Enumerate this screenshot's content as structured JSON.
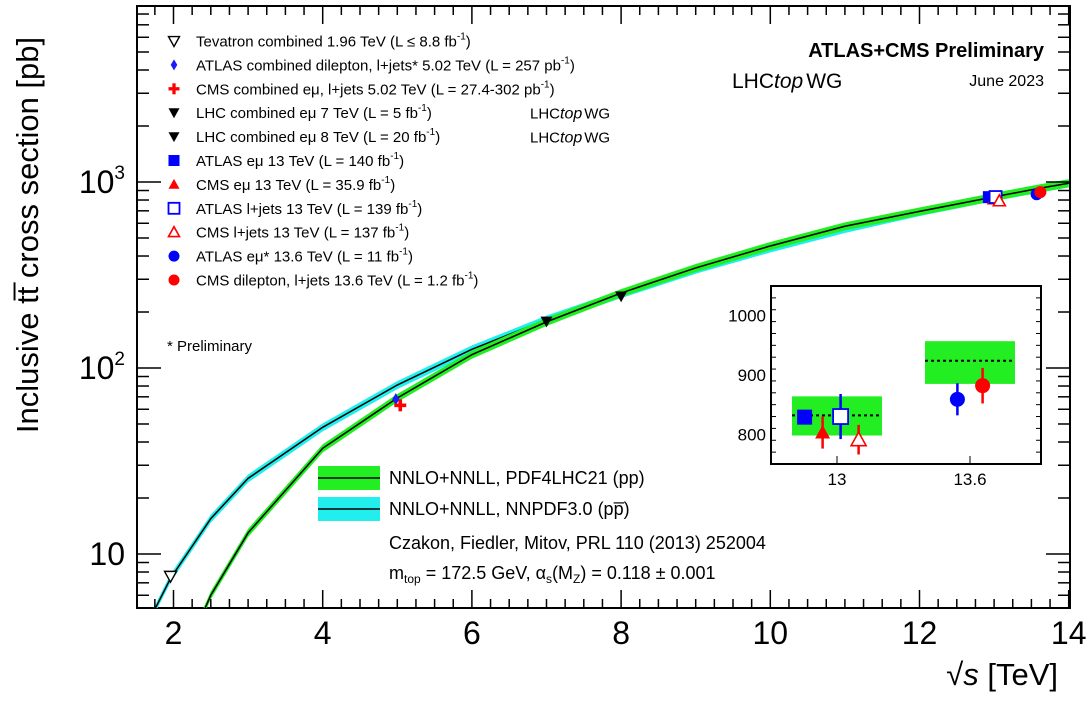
{
  "chart_data": {
    "type": "scatter",
    "ylabel": "Inclusive tt̅ cross section [pb]",
    "xlabel_prefix": "√s",
    "xlabel_suffix": " [TeV]",
    "xlim": [
      1.5,
      14
    ],
    "ylim": [
      5,
      9000
    ],
    "ylog": true,
    "x_ticks": [
      "2",
      "4",
      "6",
      "8",
      "10",
      "12",
      "14"
    ],
    "y_ticks": [
      "10",
      "10",
      "10"
    ],
    "y_tick_exps": [
      "",
      "2",
      "3"
    ],
    "header": {
      "title": "ATLAS+CMS Preliminary",
      "lhc_pre": "LHC",
      "lhc_top": "top",
      "lhc_wg": "WG",
      "date": "June 2023"
    },
    "legend_markers": [
      {
        "text": "Tevatron combined 1.96 TeV (L ≤ 8.8 fb",
        "sup": "-1",
        "tail": ")",
        "marker": "tri-down-open",
        "color": "#000000"
      },
      {
        "text": "ATLAS combined dilepton, l+jets* 5.02 TeV (L = 257 pb",
        "sup": "-1",
        "tail": ")",
        "marker": "diamond",
        "color": "#1a1aff"
      },
      {
        "text": "CMS combined eμ, l+jets 5.02 TeV (L = 27.4-302 pb",
        "sup": "-1",
        "tail": ")",
        "marker": "cross",
        "color": "#ff0000"
      },
      {
        "text": "LHC combined eμ 7 TeV (L = 5 fb",
        "sup": "-1",
        "tail": ")",
        "marker": "tri-down",
        "color": "#000000",
        "lhctop": true
      },
      {
        "text": "LHC combined eμ 8 TeV (L = 20 fb",
        "sup": "-1",
        "tail": ")",
        "marker": "tri-down",
        "color": "#000000",
        "lhctop": true
      },
      {
        "text": "ATLAS eμ 13 TeV (L = 140 fb",
        "sup": "-1",
        "tail": ")",
        "marker": "square",
        "color": "#0000ff"
      },
      {
        "text": "CMS eμ 13 TeV (L = 35.9 fb",
        "sup": "-1",
        "tail": ")",
        "marker": "tri-up",
        "color": "#ff0000"
      },
      {
        "text": "ATLAS l+jets 13 TeV (L = 139 fb",
        "sup": "-1",
        "tail": ")",
        "marker": "square-open",
        "color": "#0000ff"
      },
      {
        "text": "CMS l+jets 13 TeV (L = 137 fb",
        "sup": "-1",
        "tail": ")",
        "marker": "tri-up-open",
        "color": "#ff0000"
      },
      {
        "text": "ATLAS eμ* 13.6 TeV (L = 11 fb",
        "sup": "-1",
        "tail": ")",
        "marker": "circle",
        "color": "#0000ff"
      },
      {
        "text": "CMS dilepton, l+jets 13.6 TeV (L = 1.2 fb",
        "sup": "-1",
        "tail": ")",
        "marker": "circle",
        "color": "#ff0000"
      }
    ],
    "preliminary_note": "* Preliminary",
    "band_legend": [
      {
        "label": "NNLO+NNLL, PDF4LHC21 (pp)",
        "fill": "#22ee22"
      },
      {
        "label": "NNLO+NNLL, NNPDF3.0 (pp̅)",
        "fill": "#22eeee"
      }
    ],
    "citation": "Czakon, Fiedler, Mitov, PRL 110 (2013) 252004",
    "params": {
      "pre": "m",
      "sub1": "top",
      "mid": " = 172.5 GeV, α",
      "sub2": "s",
      "tail1": "(M",
      "sub3": "Z",
      "tail2": ") = 0.118 ± 0.001"
    },
    "theory_pp": {
      "sqrt_s": [
        2.1,
        2.5,
        3,
        4,
        5,
        6,
        7,
        8,
        9,
        10,
        11,
        12,
        13,
        13.6,
        14
      ],
      "xsec": [
        2.6,
        6.0,
        13,
        37,
        69,
        118,
        177,
        253,
        345,
        453,
        578,
        695,
        832,
        924,
        985
      ],
      "color": "#22ee22"
    },
    "theory_ppbar": {
      "sqrt_s": [
        1.7,
        1.96,
        2.5,
        3,
        4,
        5,
        6,
        7,
        8,
        9,
        10,
        11,
        12,
        13,
        14
      ],
      "xsec": [
        4.6,
        7.4,
        15.5,
        25.5,
        48,
        81,
        126,
        182,
        250,
        338,
        440,
        560,
        690,
        832,
        985
      ],
      "color": "#22eeee"
    },
    "points": [
      {
        "name": "Tevatron combined 1.96 TeV",
        "x": 1.96,
        "y": 7.6,
        "marker": "tri-down-open",
        "color": "#000000"
      },
      {
        "name": "ATLAS combined 5.02 TeV",
        "x": 4.98,
        "y": 68,
        "marker": "diamond",
        "color": "#1a1aff"
      },
      {
        "name": "CMS combined 5.02 TeV",
        "x": 5.04,
        "y": 63,
        "marker": "cross",
        "color": "#ff0000"
      },
      {
        "name": "LHC combined 7 TeV",
        "x": 7,
        "y": 178,
        "marker": "tri-down",
        "color": "#000000"
      },
      {
        "name": "LHC combined 8 TeV",
        "x": 8,
        "y": 243,
        "marker": "tri-down",
        "color": "#000000"
      },
      {
        "name": "ATLAS emu 13 TeV",
        "x": 12.93,
        "y": 829,
        "marker": "square",
        "color": "#0000ff"
      },
      {
        "name": "CMS emu 13 TeV",
        "x": 12.98,
        "y": 803,
        "marker": "tri-up",
        "color": "#ff0000"
      },
      {
        "name": "ATLAS l+jets 13 TeV",
        "x": 13.02,
        "y": 830,
        "marker": "square-open",
        "color": "#0000ff"
      },
      {
        "name": "CMS l+jets 13 TeV",
        "x": 13.07,
        "y": 791,
        "marker": "tri-up-open",
        "color": "#ff0000"
      },
      {
        "name": "ATLAS emu 13.6 TeV",
        "x": 13.57,
        "y": 859,
        "marker": "circle",
        "color": "#0000ff"
      },
      {
        "name": "CMS 13.6 TeV",
        "x": 13.62,
        "y": 882,
        "marker": "circle",
        "color": "#ff0000"
      }
    ],
    "inset": {
      "ylim": [
        750,
        1050
      ],
      "y_ticks": [
        800,
        900,
        1000
      ],
      "x_labels": [
        "13",
        "13.6"
      ],
      "bands": [
        {
          "category": "13",
          "low": 798,
          "high": 864,
          "central": 832
        },
        {
          "category": "13.6",
          "low": 885,
          "high": 957,
          "central": 924
        }
      ],
      "points": [
        {
          "category": "13",
          "offset": -0.36,
          "y": 829,
          "err": 8,
          "marker": "square",
          "color": "#0000ff"
        },
        {
          "category": "13",
          "offset": -0.16,
          "y": 803,
          "err": 27,
          "marker": "tri-up",
          "color": "#ff0000"
        },
        {
          "category": "13",
          "offset": 0.04,
          "y": 830,
          "err": 38,
          "marker": "square-open",
          "color": "#0000ff"
        },
        {
          "category": "13",
          "offset": 0.24,
          "y": 791,
          "err": 25,
          "marker": "tri-up-open",
          "color": "#ff0000"
        },
        {
          "category": "13.6",
          "offset": -0.14,
          "y": 859,
          "err": 27,
          "marker": "circle",
          "color": "#0000ff"
        },
        {
          "category": "13.6",
          "offset": 0.14,
          "y": 882,
          "err": 30,
          "marker": "circle",
          "color": "#ff0000"
        }
      ]
    }
  }
}
